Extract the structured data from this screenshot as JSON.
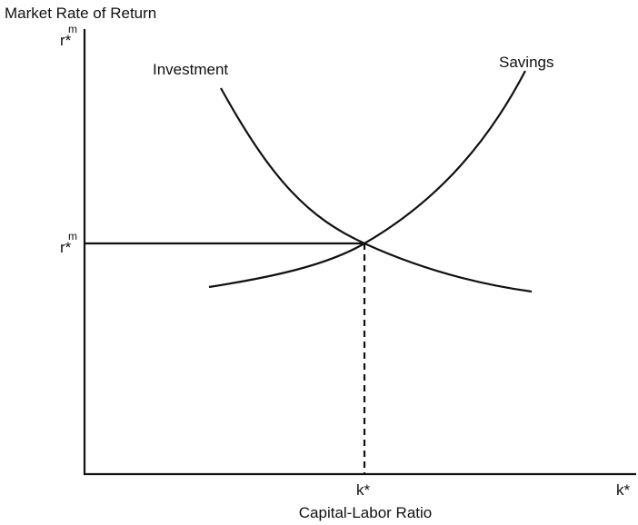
{
  "axes": {
    "y_label": "Market Rate of Return",
    "x_label": "Capital-Labor Ratio",
    "y_end": {
      "label": "r*",
      "superscript": "m"
    },
    "x_end": "k*"
  },
  "equilibrium": {
    "r_label": "r*",
    "r_superscript": "m",
    "k_label": "k*"
  },
  "curves": [
    {
      "label": "Investment"
    },
    {
      "label": "Savings"
    }
  ]
}
